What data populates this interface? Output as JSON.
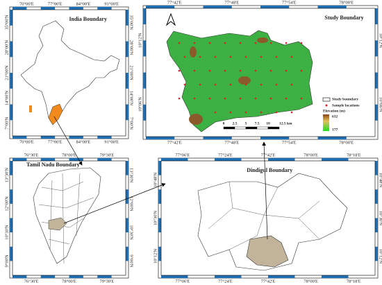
{
  "panels": [
    {
      "title": "India Boundary",
      "xticks": [
        "70°00'E",
        "77°00'E",
        "84°00'E",
        "91°00'E"
      ],
      "yticks": [
        "35°00'N",
        "28°00'N",
        "21°00'N",
        "14°00'N",
        "7°00'N"
      ]
    },
    {
      "title": "Study Boundary",
      "xticks": [
        "77°42'E",
        "77°48'E",
        "77°54'E",
        "78°00'E"
      ],
      "yticks": [
        "10°12'N",
        "10°06'N"
      ]
    },
    {
      "title": "Tamil Nadu Boundary",
      "xticks": [
        "76°30'E",
        "78°00'E",
        "79°30'E"
      ],
      "yticks": [
        "13°30'N",
        "12°00'N",
        "10°30'N",
        "9°00'N"
      ]
    },
    {
      "title": "Dindigul Boundary",
      "xticks": [
        "77°06'E",
        "77°24'E",
        "77°42'E",
        "78°00'E",
        "78°18'E"
      ],
      "yticks": [
        "10°48'N",
        "10°30'N",
        "10°12'N"
      ]
    }
  ],
  "legend": {
    "items": [
      "Study boundary",
      "Sample locations"
    ],
    "elevation_title": "Elevation (m)",
    "elevation_max": 632,
    "elevation_min": 177
  },
  "scale_bar": [
    "0",
    "2.5",
    "5",
    "7.5",
    "10",
    "12.5 km"
  ]
}
